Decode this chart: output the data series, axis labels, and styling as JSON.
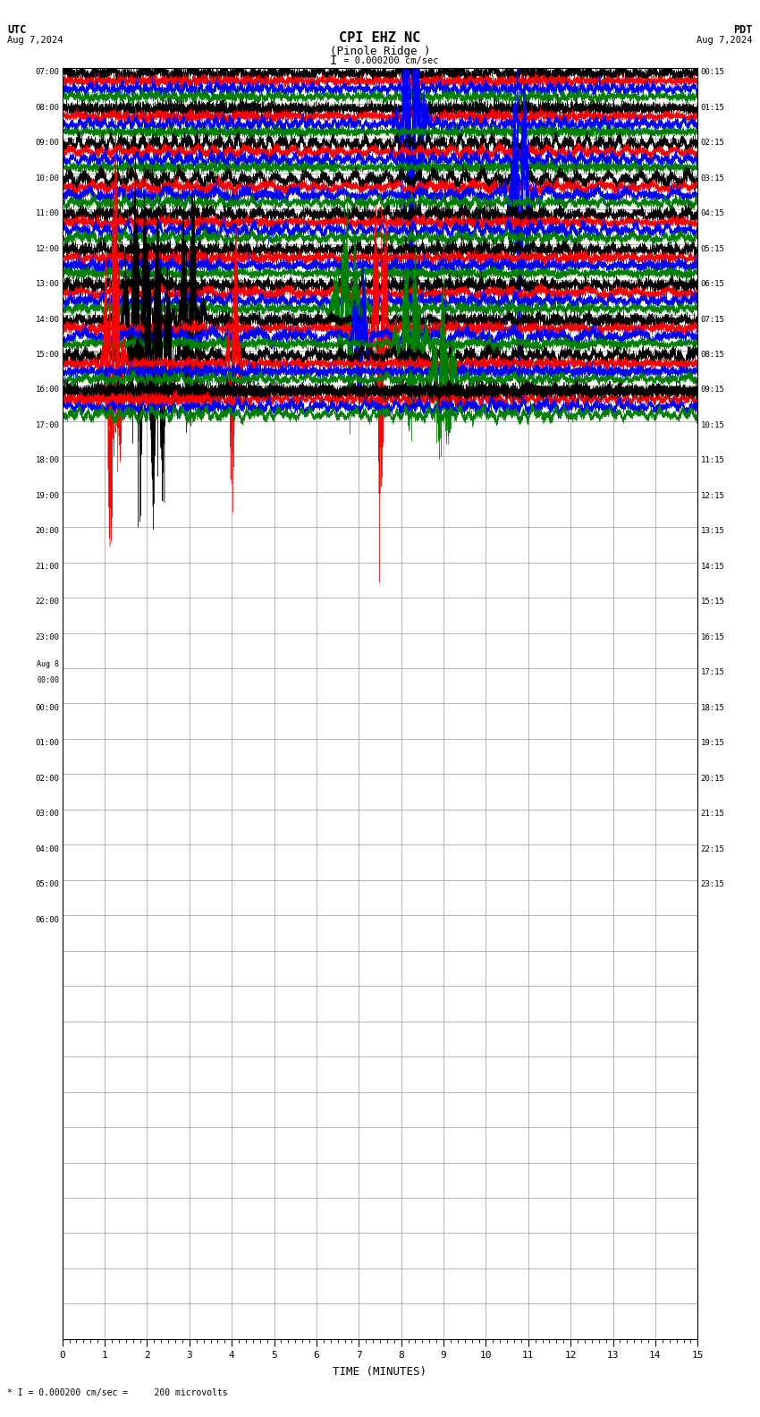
{
  "title_line1": "CPI EHZ NC",
  "title_line2": "(Pinole Ridge )",
  "scale_text": "= 0.000200 cm/sec",
  "footer_text": "* I = 0.000200 cm/sec =     200 microvolts",
  "left_label": "UTC",
  "left_date": "Aug 7,2024",
  "right_label": "PDT",
  "right_date": "Aug 7,2024",
  "xlabel": "TIME (MINUTES)",
  "bg_color": "#ffffff",
  "grid_color": "#999999",
  "trace_colors": [
    "#000000",
    "#ff0000",
    "#0000ff",
    "#008000"
  ],
  "n_rows": 36,
  "n_traces_per_row": 4,
  "data_row_count": 10,
  "left_times": [
    "07:00",
    "08:00",
    "09:00",
    "10:00",
    "11:00",
    "12:00",
    "13:00",
    "14:00",
    "15:00",
    "16:00",
    "17:00",
    "18:00",
    "19:00",
    "20:00",
    "21:00",
    "22:00",
    "23:00",
    "Aug 8",
    "00:00",
    "01:00",
    "02:00",
    "03:00",
    "04:00",
    "05:00",
    "06:00",
    "",
    "",
    "",
    "",
    "",
    "",
    "",
    "",
    "",
    "",
    ""
  ],
  "right_times": [
    "00:15",
    "01:15",
    "02:15",
    "03:15",
    "04:15",
    "05:15",
    "06:15",
    "07:15",
    "08:15",
    "09:15",
    "10:15",
    "11:15",
    "12:15",
    "13:15",
    "14:15",
    "15:15",
    "16:15",
    "17:15",
    "18:15",
    "19:15",
    "20:15",
    "21:15",
    "22:15",
    "23:15",
    "",
    "",
    "",
    "",
    "",
    "",
    "",
    "",
    "",
    "",
    "",
    ""
  ]
}
